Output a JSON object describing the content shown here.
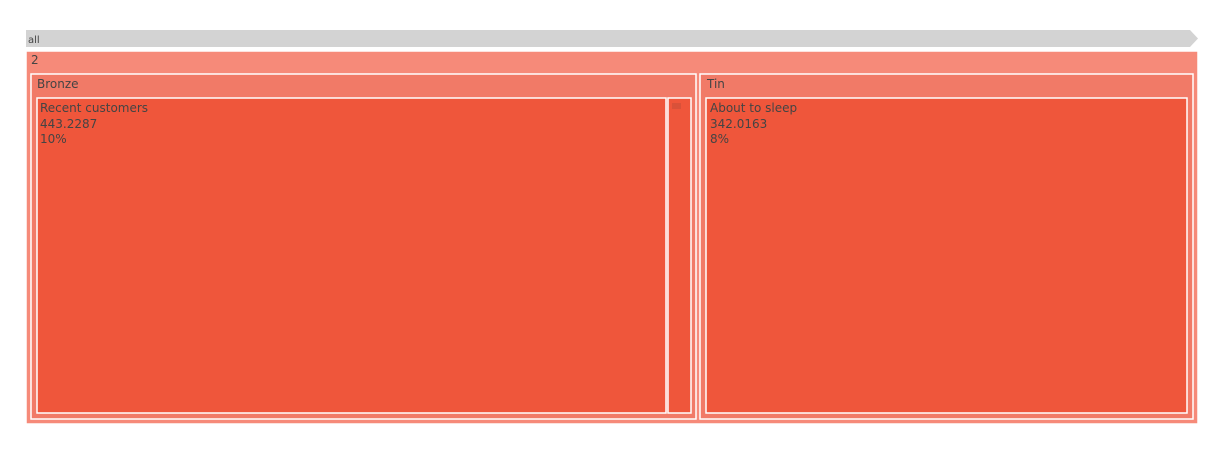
{
  "chart_data": {
    "type": "treemap",
    "pathbar": [
      "all"
    ],
    "root": {
      "label": "2",
      "color": "#f68a79",
      "children": [
        {
          "label": "Bronze",
          "color": "#f17a67",
          "children": [
            {
              "label": "Recent customers",
              "value": 443.2287,
              "percent": "10%",
              "color": "#ef563b"
            },
            {
              "label": "",
              "color": "#ef563b"
            }
          ]
        },
        {
          "label": "Tin",
          "color": "#f17a67",
          "children": [
            {
              "label": "About to sleep",
              "value": 342.0163,
              "percent": "8%",
              "color": "#ef563b"
            }
          ]
        }
      ]
    },
    "colors": {
      "pathbar": "#d3d3d3",
      "border": "#ffffff",
      "text": "#444444"
    }
  }
}
